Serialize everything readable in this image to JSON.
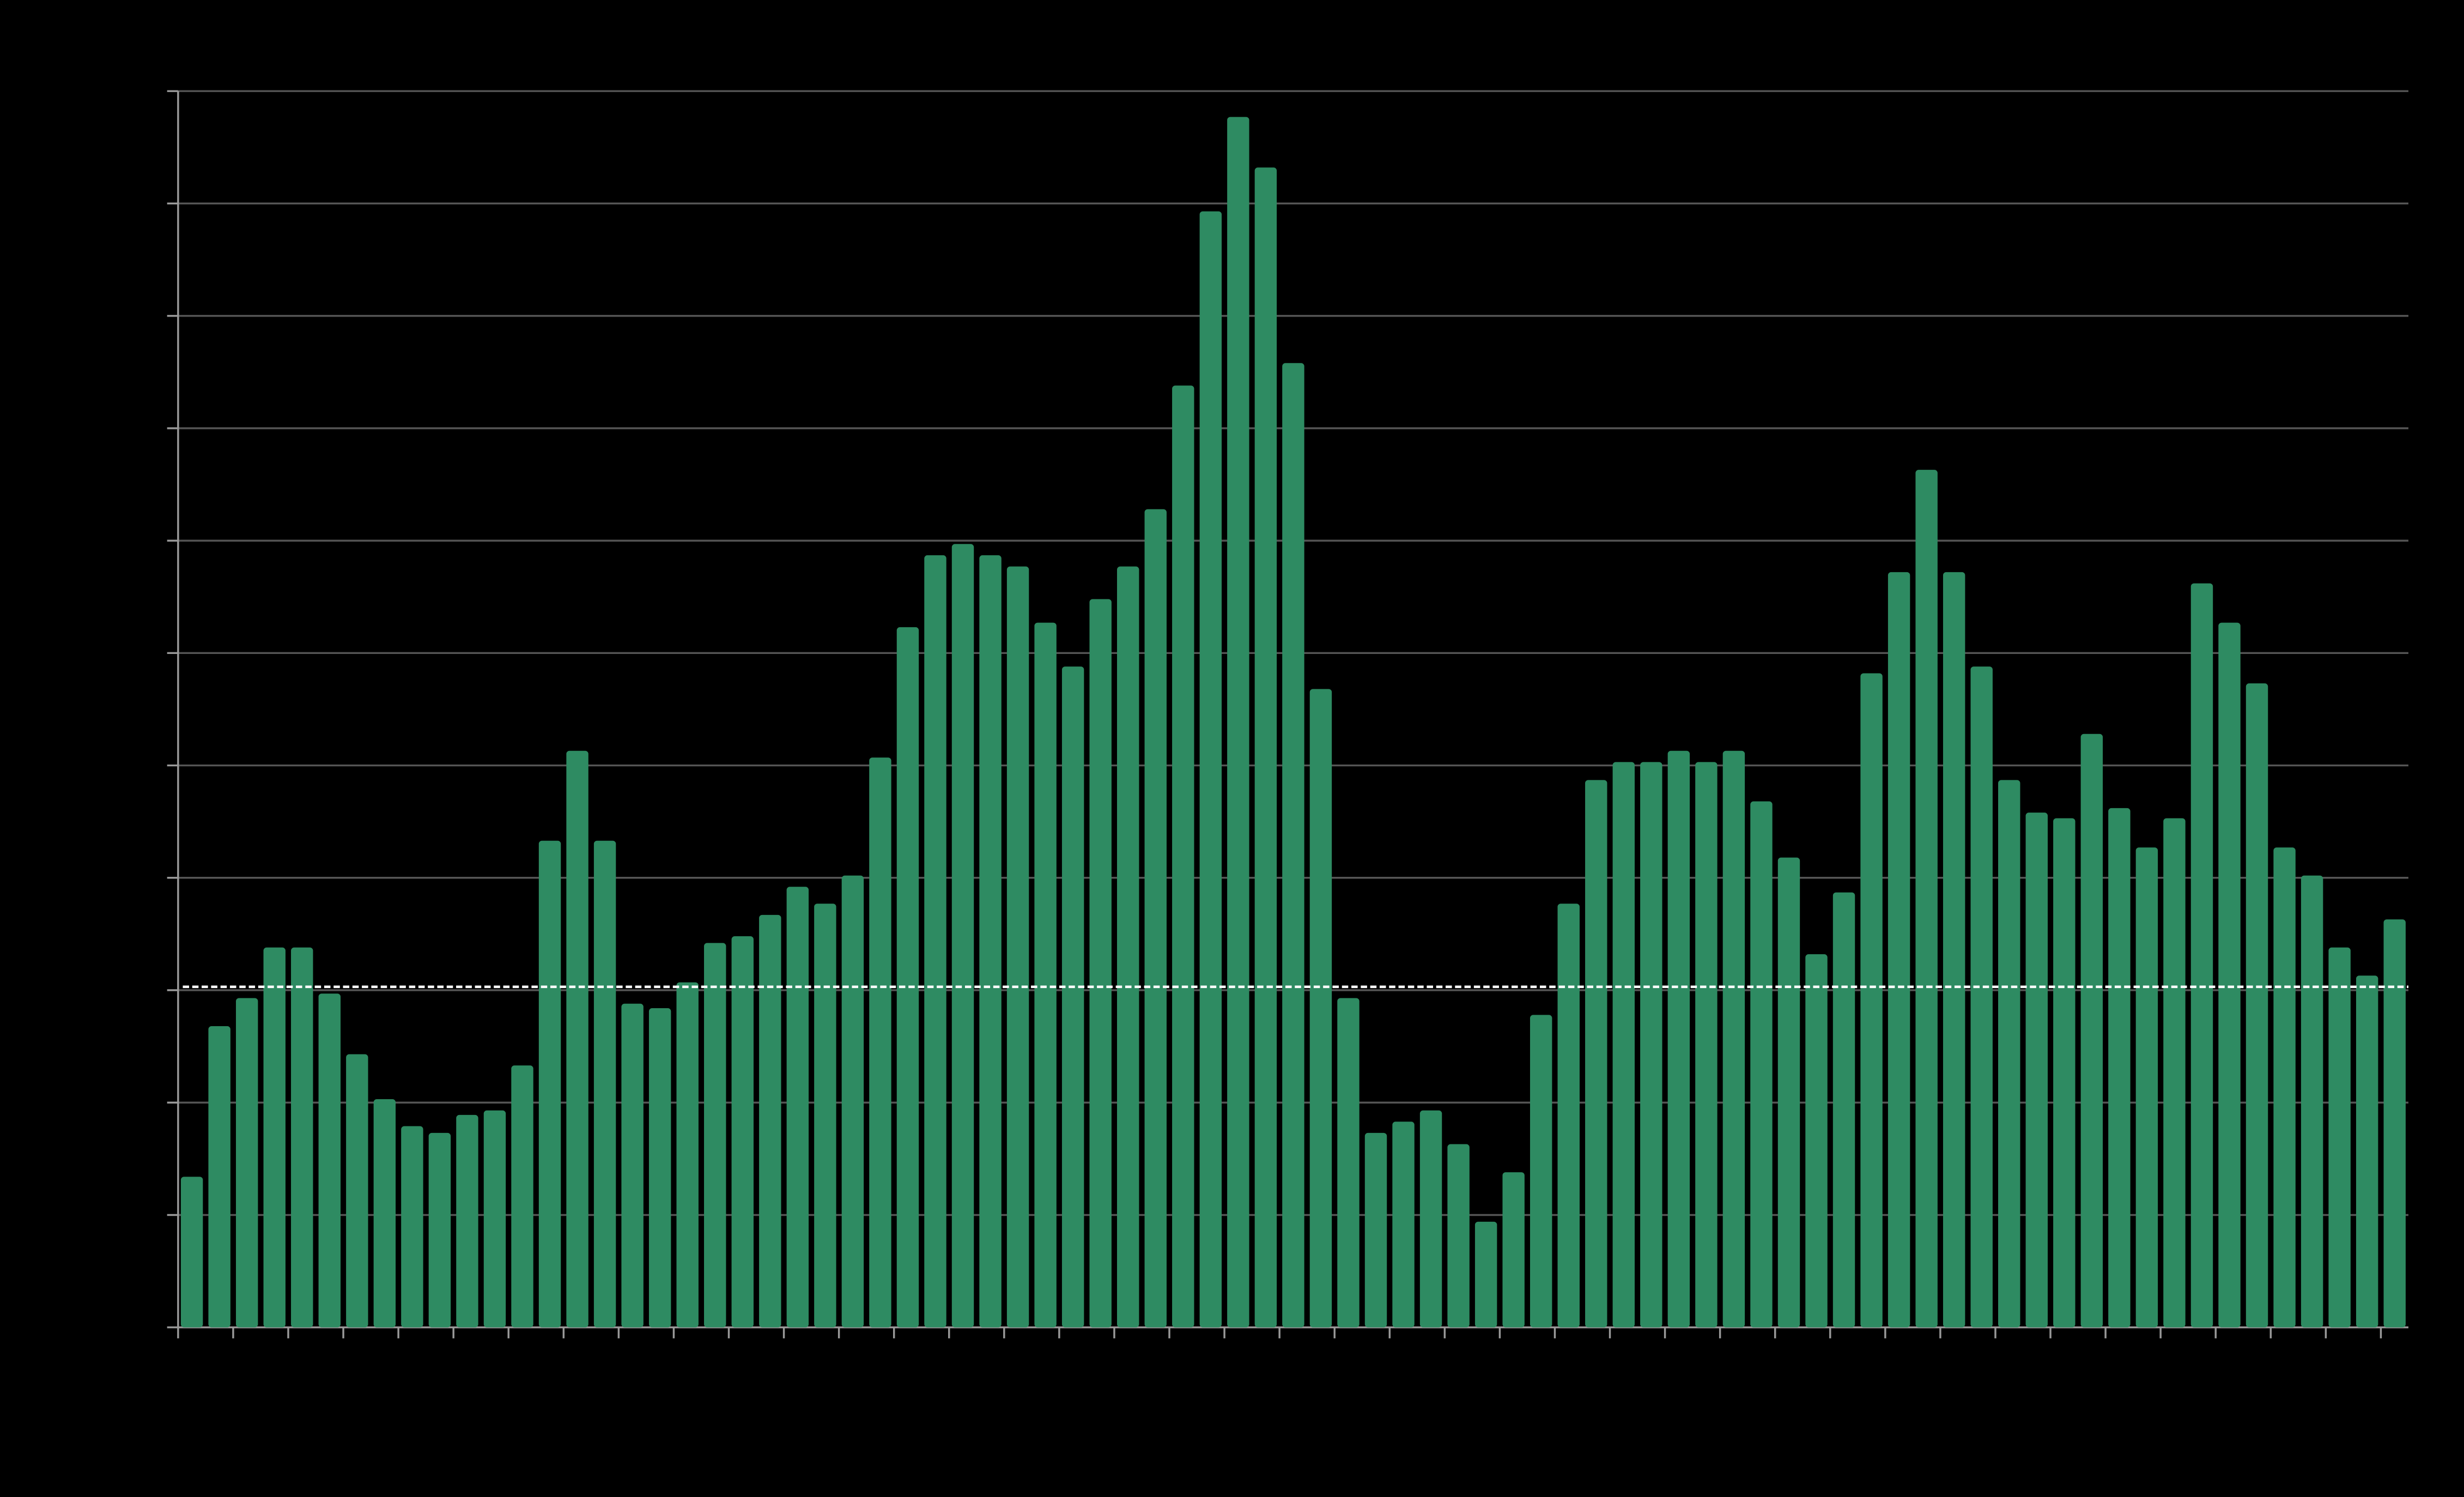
{
  "chart_data": {
    "type": "bar",
    "categories": [
      null,
      null,
      null,
      null,
      null,
      null,
      null,
      null,
      null,
      null,
      null,
      null,
      null,
      null,
      null,
      null,
      null,
      null,
      null,
      null,
      null,
      null,
      null,
      null,
      null,
      null,
      null,
      null,
      null,
      null,
      null,
      null,
      null,
      null,
      null,
      null,
      null,
      null,
      null,
      null,
      null,
      null,
      null,
      null,
      null,
      null,
      null,
      null,
      null,
      null,
      null,
      null,
      null,
      null,
      null,
      null,
      null,
      null,
      null,
      null,
      null,
      null,
      null,
      null,
      null,
      null,
      null,
      null,
      null,
      null,
      null,
      null,
      null,
      null,
      null,
      null,
      null,
      null,
      null,
      null,
      null
    ],
    "values": [
      1.34,
      2.68,
      2.93,
      3.38,
      3.38,
      2.97,
      2.43,
      2.03,
      1.79,
      1.73,
      1.89,
      1.93,
      2.33,
      4.33,
      5.13,
      4.33,
      2.88,
      2.84,
      3.07,
      3.42,
      3.48,
      3.67,
      3.92,
      3.77,
      4.02,
      5.07,
      6.23,
      6.87,
      6.97,
      6.87,
      6.77,
      6.27,
      5.88,
      6.48,
      6.77,
      7.28,
      8.38,
      9.93,
      10.77,
      10.32,
      8.58,
      5.68,
      2.93,
      1.73,
      1.83,
      1.93,
      1.63,
      0.94,
      1.38,
      2.78,
      3.77,
      4.87,
      5.03,
      5.03,
      5.13,
      5.03,
      5.13,
      4.68,
      4.18,
      3.32,
      3.87,
      5.82,
      6.72,
      7.63,
      6.72,
      5.88,
      4.87,
      4.58,
      4.53,
      5.28,
      4.62,
      4.27,
      4.53,
      6.62,
      6.27,
      5.73,
      4.27,
      4.02,
      3.38,
      3.13,
      3.63
    ],
    "color": "#2e8b62",
    "ylim": [
      0,
      11
    ],
    "yticks": [
      0,
      1,
      2,
      3,
      4,
      5,
      6,
      7,
      8,
      9,
      10,
      11
    ],
    "grid": true,
    "reference_line": 3.03
  }
}
